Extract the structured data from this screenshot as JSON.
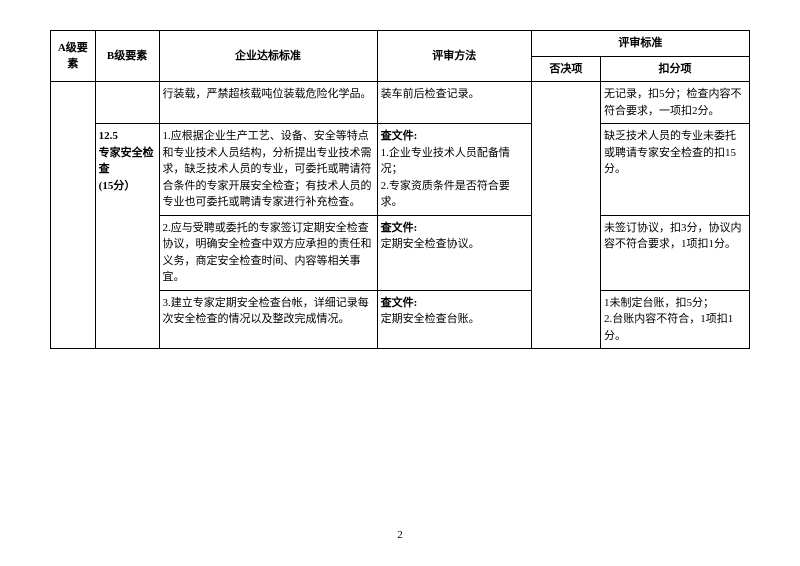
{
  "headers": {
    "a_element": "A级要素",
    "b_element": "B级要素",
    "standard": "企业达标标准",
    "method": "评审方法",
    "scoring": "评审标准",
    "veto": "否决项",
    "deduct": "扣分项"
  },
  "rows": [
    {
      "b_element": "",
      "standard": "行装载，严禁超核载吨位装载危险化学品。",
      "method": "装车前后检查记录。",
      "deduct": "无记录，扣5分；检查内容不符合要求，一项扣2分。"
    },
    {
      "b_element_title": "12.5",
      "b_element_name": "专家安全检查",
      "b_element_score": "(15分）",
      "standard": "1.应根据企业生产工艺、设备、安全等特点和专业技术人员结构，分析提出专业技术需求，缺乏技术人员的专业，可委托或聘请符合条件的专家开展安全检查；有技术人员的专业也可委托或聘请专家进行补充检查。",
      "method_title": "查文件:",
      "method_lines": "1.企业专业技术人员配备情况；\n2.专家资质条件是否符合要求。",
      "deduct": "缺乏技术人员的专业未委托或聘请专家安全检查的扣15分。"
    },
    {
      "standard": "2.应与受聘或委托的专家签订定期安全检查协议，明确安全检查中双方应承担的责任和义务，商定安全检查时间、内容等相关事宜。",
      "method_title": "查文件:",
      "method_lines": "定期安全检查协议。",
      "deduct": "未签订协议，扣3分，协议内容不符合要求，1项扣1分。"
    },
    {
      "standard": "3.建立专家定期安全检查台帐，详细记录每次安全检查的情况以及整改完成情况。",
      "method_title": "查文件:",
      "method_lines": "定期安全检查台账。",
      "deduct": "1未制定台账，扣5分；\n2.台账内容不符合，1项扣1分。"
    }
  ],
  "page_number": "2"
}
